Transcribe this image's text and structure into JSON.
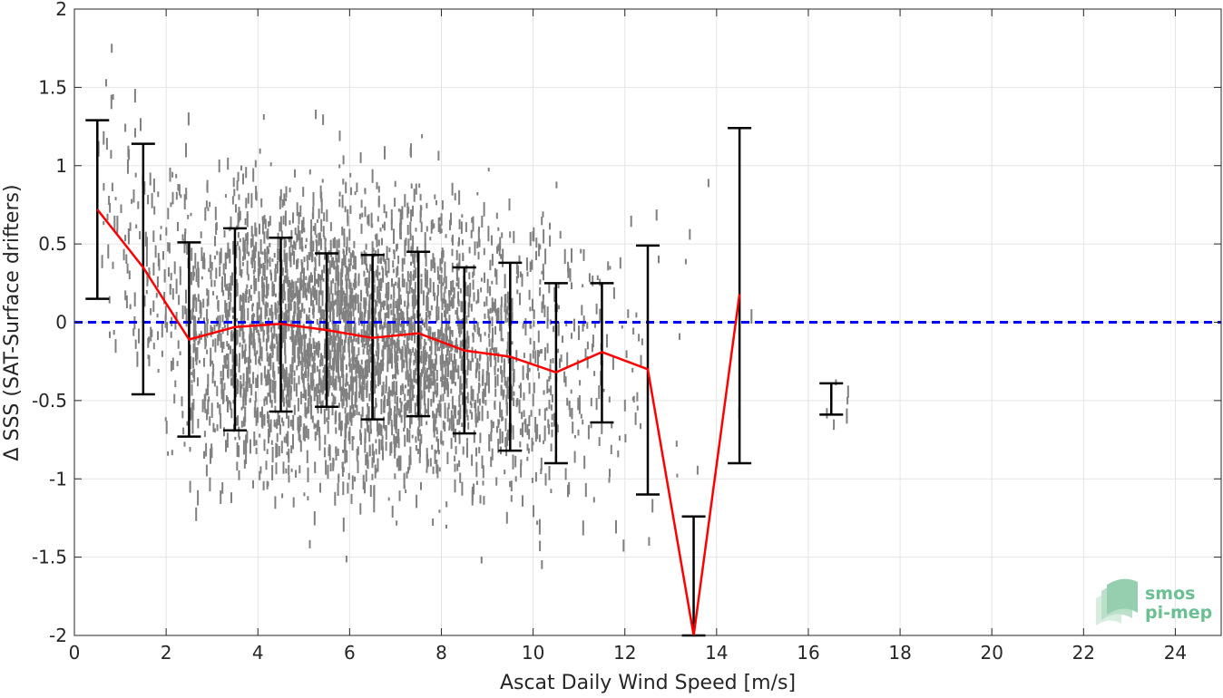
{
  "chart_data": {
    "type": "scatter",
    "title": "",
    "xlabel": "Ascat Daily Wind Speed [m/s]",
    "ylabel": "Δ SSS (SAT-Surface drifters)",
    "xlim": [
      0,
      25
    ],
    "ylim": [
      -2,
      2
    ],
    "xticks": [
      0,
      2,
      4,
      6,
      8,
      10,
      12,
      14,
      16,
      18,
      20,
      22,
      24
    ],
    "yticks": [
      -2,
      -1.5,
      -1,
      -0.5,
      0,
      0.5,
      1,
      1.5,
      2
    ],
    "ytick_labels": [
      "-2",
      "-1.5",
      "-1",
      "-0.5",
      "0",
      "0.5",
      "1",
      "1.5",
      "2"
    ],
    "grid": true,
    "series": [
      {
        "kind": "binned-mean-line",
        "color": "#ff0000",
        "x": [
          0.5,
          1.5,
          2.5,
          3.5,
          4.5,
          5.5,
          6.5,
          7.5,
          8.5,
          9.5,
          10.5,
          11.5,
          12.5,
          13.5,
          14.5
        ],
        "y": [
          0.72,
          0.35,
          -0.11,
          -0.03,
          -0.01,
          -0.05,
          -0.1,
          -0.07,
          -0.18,
          -0.22,
          -0.32,
          -0.19,
          -0.3,
          -2.0,
          0.18
        ]
      },
      {
        "kind": "errorbars",
        "color": "#000000",
        "bars": [
          {
            "x": 0.5,
            "low": 0.15,
            "high": 1.29
          },
          {
            "x": 1.5,
            "low": -0.46,
            "high": 1.14
          },
          {
            "x": 2.5,
            "low": -0.73,
            "high": 0.51
          },
          {
            "x": 3.5,
            "low": -0.69,
            "high": 0.6
          },
          {
            "x": 4.5,
            "low": -0.57,
            "high": 0.54
          },
          {
            "x": 5.5,
            "low": -0.54,
            "high": 0.44
          },
          {
            "x": 6.5,
            "low": -0.62,
            "high": 0.43
          },
          {
            "x": 7.5,
            "low": -0.6,
            "high": 0.45
          },
          {
            "x": 8.5,
            "low": -0.71,
            "high": 0.35
          },
          {
            "x": 9.5,
            "low": -0.82,
            "high": 0.38
          },
          {
            "x": 10.5,
            "low": -0.9,
            "high": 0.25
          },
          {
            "x": 11.5,
            "low": -0.64,
            "high": 0.25
          },
          {
            "x": 12.5,
            "low": -1.1,
            "high": 0.49
          },
          {
            "x": 13.5,
            "low": -2.0,
            "high": -1.24
          },
          {
            "x": 14.5,
            "low": -0.9,
            "high": 1.24
          },
          {
            "x": 16.5,
            "low": -0.59,
            "high": -0.39
          }
        ]
      },
      {
        "kind": "reference-line",
        "y": 0,
        "color": "#0000ff",
        "style": "dashed"
      },
      {
        "kind": "scatter-cloud",
        "color": "#808080",
        "note_bins": [
          {
            "x": [
              0.5,
              1.5
            ],
            "center": 0.65,
            "spread": 0.45,
            "count": 60
          },
          {
            "x": [
              1.5,
              2.5
            ],
            "center": 0.3,
            "spread": 0.5,
            "count": 110
          },
          {
            "x": [
              2.5,
              3.5
            ],
            "center": -0.05,
            "spread": 0.45,
            "count": 260
          },
          {
            "x": [
              3.5,
              4.5
            ],
            "center": 0.0,
            "spread": 0.45,
            "count": 420
          },
          {
            "x": [
              4.5,
              5.5
            ],
            "center": -0.02,
            "spread": 0.45,
            "count": 520
          },
          {
            "x": [
              5.5,
              6.5
            ],
            "center": -0.06,
            "spread": 0.45,
            "count": 560
          },
          {
            "x": [
              6.5,
              7.5
            ],
            "center": -0.08,
            "spread": 0.45,
            "count": 520
          },
          {
            "x": [
              7.5,
              8.5
            ],
            "center": -0.12,
            "spread": 0.45,
            "count": 420
          },
          {
            "x": [
              8.5,
              9.5
            ],
            "center": -0.2,
            "spread": 0.45,
            "count": 280
          },
          {
            "x": [
              9.5,
              10.5
            ],
            "center": -0.25,
            "spread": 0.5,
            "count": 170
          },
          {
            "x": [
              10.5,
              11.5
            ],
            "center": -0.25,
            "spread": 0.45,
            "count": 80
          },
          {
            "x": [
              11.5,
              12.5
            ],
            "center": -0.25,
            "spread": 0.5,
            "count": 35
          },
          {
            "x": [
              12.5,
              13.5
            ],
            "center": -0.3,
            "spread": 0.7,
            "count": 10
          },
          {
            "x": [
              13.5,
              15.0
            ],
            "center": -0.6,
            "spread": 0.9,
            "count": 6
          },
          {
            "x": [
              16.3,
              16.9
            ],
            "center": -0.5,
            "spread": 0.08,
            "count": 6
          }
        ]
      }
    ]
  },
  "logo": {
    "line1": "smos",
    "line2": "pi-mep",
    "color": "#6abf93"
  }
}
